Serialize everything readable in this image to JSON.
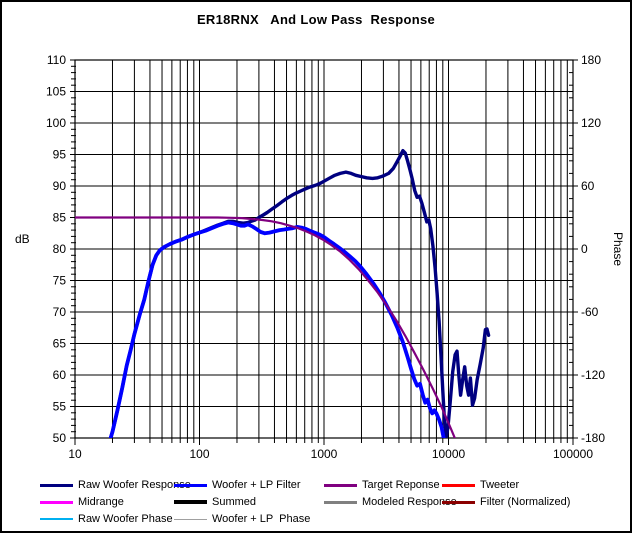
{
  "title": "ER18RNX   And Low Pass  Response",
  "axes": {
    "y_left_label": "dB",
    "y_right_label": "Phase",
    "x_tick_labels": [
      "10",
      "100",
      "1000",
      "10000",
      "100000"
    ]
  },
  "chart_data": {
    "type": "line",
    "title": "ER18RNX   And Low Pass  Response",
    "x_scale": "log",
    "xlim": [
      10,
      100000
    ],
    "ylim_left": [
      50,
      110
    ],
    "ylim_right": [
      -180,
      180
    ],
    "ylabel_left": "dB",
    "ylabel_right": "Phase",
    "grid": true,
    "x_ticks": [
      10,
      100,
      1000,
      10000,
      100000
    ],
    "y_ticks_left": [
      110,
      105,
      100,
      95,
      90,
      85,
      80,
      75,
      70,
      65,
      60,
      55,
      50
    ],
    "y_ticks_right": [
      180,
      120,
      60,
      0,
      -60,
      -120,
      -180
    ],
    "y_minor_step_left": 1,
    "y_minor_step_right": 12,
    "series": [
      {
        "name": "Raw Woofer Response",
        "color": "#000080",
        "width": 3.4,
        "axis": "left",
        "points": [
          [
            19,
            49.5
          ],
          [
            20,
            51
          ],
          [
            22,
            54.5
          ],
          [
            24,
            58
          ],
          [
            26,
            61.5
          ],
          [
            28,
            64
          ],
          [
            30,
            66.5
          ],
          [
            33,
            69.5
          ],
          [
            36,
            72
          ],
          [
            39,
            75
          ],
          [
            42,
            77.5
          ],
          [
            45,
            79
          ],
          [
            48,
            79.8
          ],
          [
            52,
            80.3
          ],
          [
            58,
            80.8
          ],
          [
            65,
            81.2
          ],
          [
            72,
            81.5
          ],
          [
            80,
            81.9
          ],
          [
            90,
            82.3
          ],
          [
            100,
            82.6
          ],
          [
            112,
            83
          ],
          [
            125,
            83.4
          ],
          [
            140,
            83.8
          ],
          [
            155,
            84.1
          ],
          [
            170,
            84.4
          ],
          [
            185,
            84.4
          ],
          [
            205,
            84.2
          ],
          [
            225,
            84.1
          ],
          [
            245,
            84.2
          ],
          [
            260,
            84.4
          ],
          [
            280,
            84.6
          ],
          [
            300,
            85
          ],
          [
            325,
            85.4
          ],
          [
            350,
            85.8
          ],
          [
            380,
            86.3
          ],
          [
            420,
            86.9
          ],
          [
            460,
            87.5
          ],
          [
            500,
            88
          ],
          [
            550,
            88.5
          ],
          [
            600,
            88.9
          ],
          [
            650,
            89.2
          ],
          [
            700,
            89.5
          ],
          [
            760,
            89.8
          ],
          [
            820,
            90
          ],
          [
            880,
            90.2
          ],
          [
            950,
            90.5
          ],
          [
            1030,
            90.9
          ],
          [
            1120,
            91.3
          ],
          [
            1220,
            91.7
          ],
          [
            1350,
            92
          ],
          [
            1500,
            92.2
          ],
          [
            1650,
            92
          ],
          [
            1800,
            91.7
          ],
          [
            2000,
            91.5
          ],
          [
            2200,
            91.3
          ],
          [
            2450,
            91.2
          ],
          [
            2700,
            91.3
          ],
          [
            3000,
            91.6
          ],
          [
            3300,
            92
          ],
          [
            3600,
            92.8
          ],
          [
            3900,
            94
          ],
          [
            4100,
            94.8
          ],
          [
            4300,
            95.6
          ],
          [
            4500,
            95.2
          ],
          [
            4700,
            93.9
          ],
          [
            4900,
            92.6
          ],
          [
            5100,
            91.2
          ],
          [
            5350,
            89.3
          ],
          [
            5600,
            88.2
          ],
          [
            5850,
            88.4
          ],
          [
            6100,
            87.3
          ],
          [
            6400,
            85.8
          ],
          [
            6700,
            84.3
          ],
          [
            6950,
            84.6
          ],
          [
            7200,
            83.2
          ],
          [
            7500,
            80.5
          ],
          [
            7800,
            77
          ],
          [
            8100,
            73
          ],
          [
            8400,
            68.5
          ],
          [
            8700,
            63
          ],
          [
            9000,
            57.5
          ],
          [
            9300,
            52.5
          ],
          [
            9600,
            50.2
          ],
          [
            9900,
            51.8
          ],
          [
            10300,
            55.5
          ],
          [
            10800,
            60.5
          ],
          [
            11300,
            63.2
          ],
          [
            11700,
            63.8
          ],
          [
            12100,
            60
          ],
          [
            12500,
            56.8
          ],
          [
            13000,
            59.3
          ],
          [
            13500,
            61.3
          ],
          [
            14000,
            58.3
          ],
          [
            14500,
            56.8
          ],
          [
            15000,
            59.5
          ],
          [
            15600,
            55.2
          ],
          [
            16200,
            56.3
          ],
          [
            17000,
            59.3
          ],
          [
            18000,
            61.8
          ],
          [
            19000,
            64.3
          ],
          [
            19800,
            67.2
          ],
          [
            20400,
            67.3
          ],
          [
            21000,
            66.3
          ]
        ]
      },
      {
        "name": "Woofer + LP Filter",
        "color": "#0000FF",
        "width": 3.8,
        "axis": "left",
        "points": [
          [
            19,
            49.5
          ],
          [
            20,
            51
          ],
          [
            22,
            54.5
          ],
          [
            24,
            58
          ],
          [
            26,
            61.5
          ],
          [
            28,
            64
          ],
          [
            30,
            66.5
          ],
          [
            33,
            69.5
          ],
          [
            36,
            72
          ],
          [
            39,
            75
          ],
          [
            42,
            77.5
          ],
          [
            45,
            79
          ],
          [
            48,
            79.8
          ],
          [
            52,
            80.3
          ],
          [
            58,
            80.8
          ],
          [
            65,
            81.2
          ],
          [
            72,
            81.5
          ],
          [
            80,
            81.9
          ],
          [
            90,
            82.3
          ],
          [
            100,
            82.6
          ],
          [
            112,
            82.9
          ],
          [
            125,
            83.3
          ],
          [
            140,
            83.7
          ],
          [
            155,
            84
          ],
          [
            170,
            84.2
          ],
          [
            185,
            84.1
          ],
          [
            200,
            83.9
          ],
          [
            215,
            83.7
          ],
          [
            230,
            83.7
          ],
          [
            245,
            83.9
          ],
          [
            265,
            83.6
          ],
          [
            285,
            83.2
          ],
          [
            310,
            82.7
          ],
          [
            335,
            82.5
          ],
          [
            365,
            82.6
          ],
          [
            400,
            82.8
          ],
          [
            440,
            83
          ],
          [
            480,
            83.1
          ],
          [
            520,
            83.2
          ],
          [
            560,
            83.3
          ],
          [
            610,
            83.5
          ],
          [
            660,
            83.4
          ],
          [
            710,
            83.2
          ],
          [
            770,
            82.9
          ],
          [
            840,
            82.6
          ],
          [
            920,
            82.3
          ],
          [
            1000,
            81.9
          ],
          [
            1100,
            81.3
          ],
          [
            1200,
            80.8
          ],
          [
            1320,
            80.2
          ],
          [
            1450,
            79.6
          ],
          [
            1600,
            78.9
          ],
          [
            1780,
            78.1
          ],
          [
            1960,
            77.2
          ],
          [
            2200,
            76
          ],
          [
            2500,
            74.5
          ],
          [
            2800,
            73
          ],
          [
            3100,
            71.5
          ],
          [
            3500,
            69.5
          ],
          [
            3900,
            67.4
          ],
          [
            4300,
            65.2
          ],
          [
            4700,
            62.8
          ],
          [
            5000,
            61
          ],
          [
            5300,
            59.4
          ],
          [
            5600,
            58.3
          ],
          [
            5900,
            58.6
          ],
          [
            6200,
            56.9
          ],
          [
            6500,
            55.6
          ],
          [
            6800,
            56.1
          ],
          [
            7100,
            54.7
          ],
          [
            7400,
            53.9
          ],
          [
            7700,
            54.4
          ],
          [
            8000,
            53.9
          ],
          [
            8400,
            52.9
          ],
          [
            8800,
            51.7
          ],
          [
            9100,
            50.2
          ],
          [
            9400,
            48.5
          ],
          [
            9600,
            47
          ]
        ]
      },
      {
        "name": "Target Reponse",
        "color": "#800080",
        "width": 2.2,
        "axis": "left",
        "points": [
          [
            10,
            85
          ],
          [
            50,
            85
          ],
          [
            100,
            85
          ],
          [
            140,
            85
          ],
          [
            180,
            84.95
          ],
          [
            220,
            84.9
          ],
          [
            270,
            84.75
          ],
          [
            320,
            84.6
          ],
          [
            380,
            84.4
          ],
          [
            450,
            84.1
          ],
          [
            530,
            83.7
          ],
          [
            620,
            83.3
          ],
          [
            720,
            82.8
          ],
          [
            840,
            82.2
          ],
          [
            980,
            81.5
          ],
          [
            1150,
            80.6
          ],
          [
            1350,
            79.6
          ],
          [
            1600,
            78.3
          ],
          [
            1900,
            76.8
          ],
          [
            2250,
            75.1
          ],
          [
            2700,
            73.1
          ],
          [
            3200,
            71
          ],
          [
            3800,
            68.7
          ],
          [
            4500,
            66.2
          ],
          [
            5300,
            63.6
          ],
          [
            6300,
            60.8
          ],
          [
            7500,
            57.8
          ],
          [
            8900,
            54.7
          ],
          [
            10500,
            51.4
          ],
          [
            12500,
            47.8
          ],
          [
            14500,
            44.5
          ],
          [
            15500,
            43
          ]
        ]
      }
    ]
  },
  "legend": {
    "items": [
      {
        "label": "Raw Woofer Response",
        "color": "#000080",
        "thickness": 3,
        "row": 0,
        "col": 0
      },
      {
        "label": "Woofer + LP Filter",
        "color": "#0000FF",
        "thickness": 3,
        "row": 0,
        "col": 1
      },
      {
        "label": "Target Reponse",
        "color": "#800080",
        "thickness": 3,
        "row": 0,
        "col": 2
      },
      {
        "label": "Tweeter",
        "color": "#FF0000",
        "thickness": 3,
        "row": 0,
        "col": 3
      },
      {
        "label": "Midrange",
        "color": "#FF00FF",
        "thickness": 3,
        "row": 1,
        "col": 0
      },
      {
        "label": "Summed",
        "color": "#000000",
        "thickness": 4,
        "row": 1,
        "col": 1
      },
      {
        "label": "Modeled Response",
        "color": "#808080",
        "thickness": 3,
        "row": 1,
        "col": 2
      },
      {
        "label": "Filter (Normalized)",
        "color": "#8B0000",
        "thickness": 3,
        "row": 1,
        "col": 3
      },
      {
        "label": "Raw Woofer Phase",
        "color": "#00B0F0",
        "thickness": 2,
        "row": 2,
        "col": 0
      },
      {
        "label": "Woofer + LP  Phase",
        "color": "#A0A0A0",
        "thickness": 1,
        "row": 2,
        "col": 1
      }
    ]
  }
}
